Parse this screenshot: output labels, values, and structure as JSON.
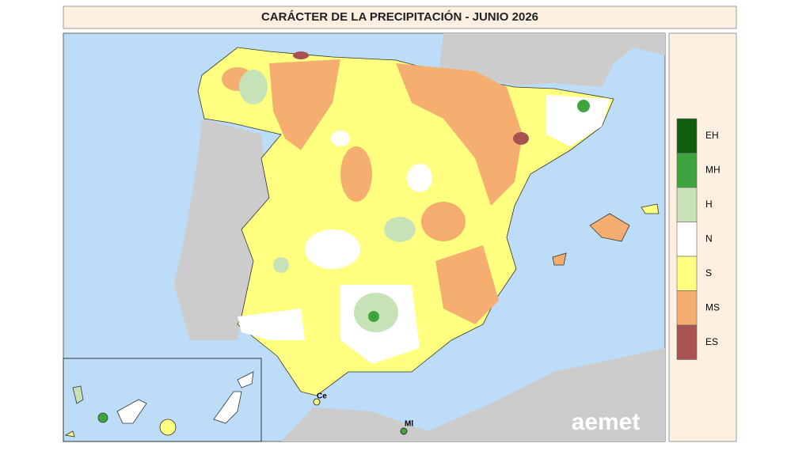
{
  "title": "CARÁCTER DE LA PRECIPITACIÓN - JUNIO 2026",
  "legend": [
    {
      "label": "EH",
      "color": "#0d5e0d"
    },
    {
      "label": "MH",
      "color": "#3ea53e"
    },
    {
      "label": "H",
      "color": "#c8e2b8"
    },
    {
      "label": "N",
      "color": "#ffffff"
    },
    {
      "label": "S",
      "color": "#ffff80"
    },
    {
      "label": "MS",
      "color": "#f6ad70"
    },
    {
      "label": "ES",
      "color": "#a85252"
    }
  ],
  "places": [
    "Ce",
    "Ml"
  ],
  "logo": "aemet"
}
